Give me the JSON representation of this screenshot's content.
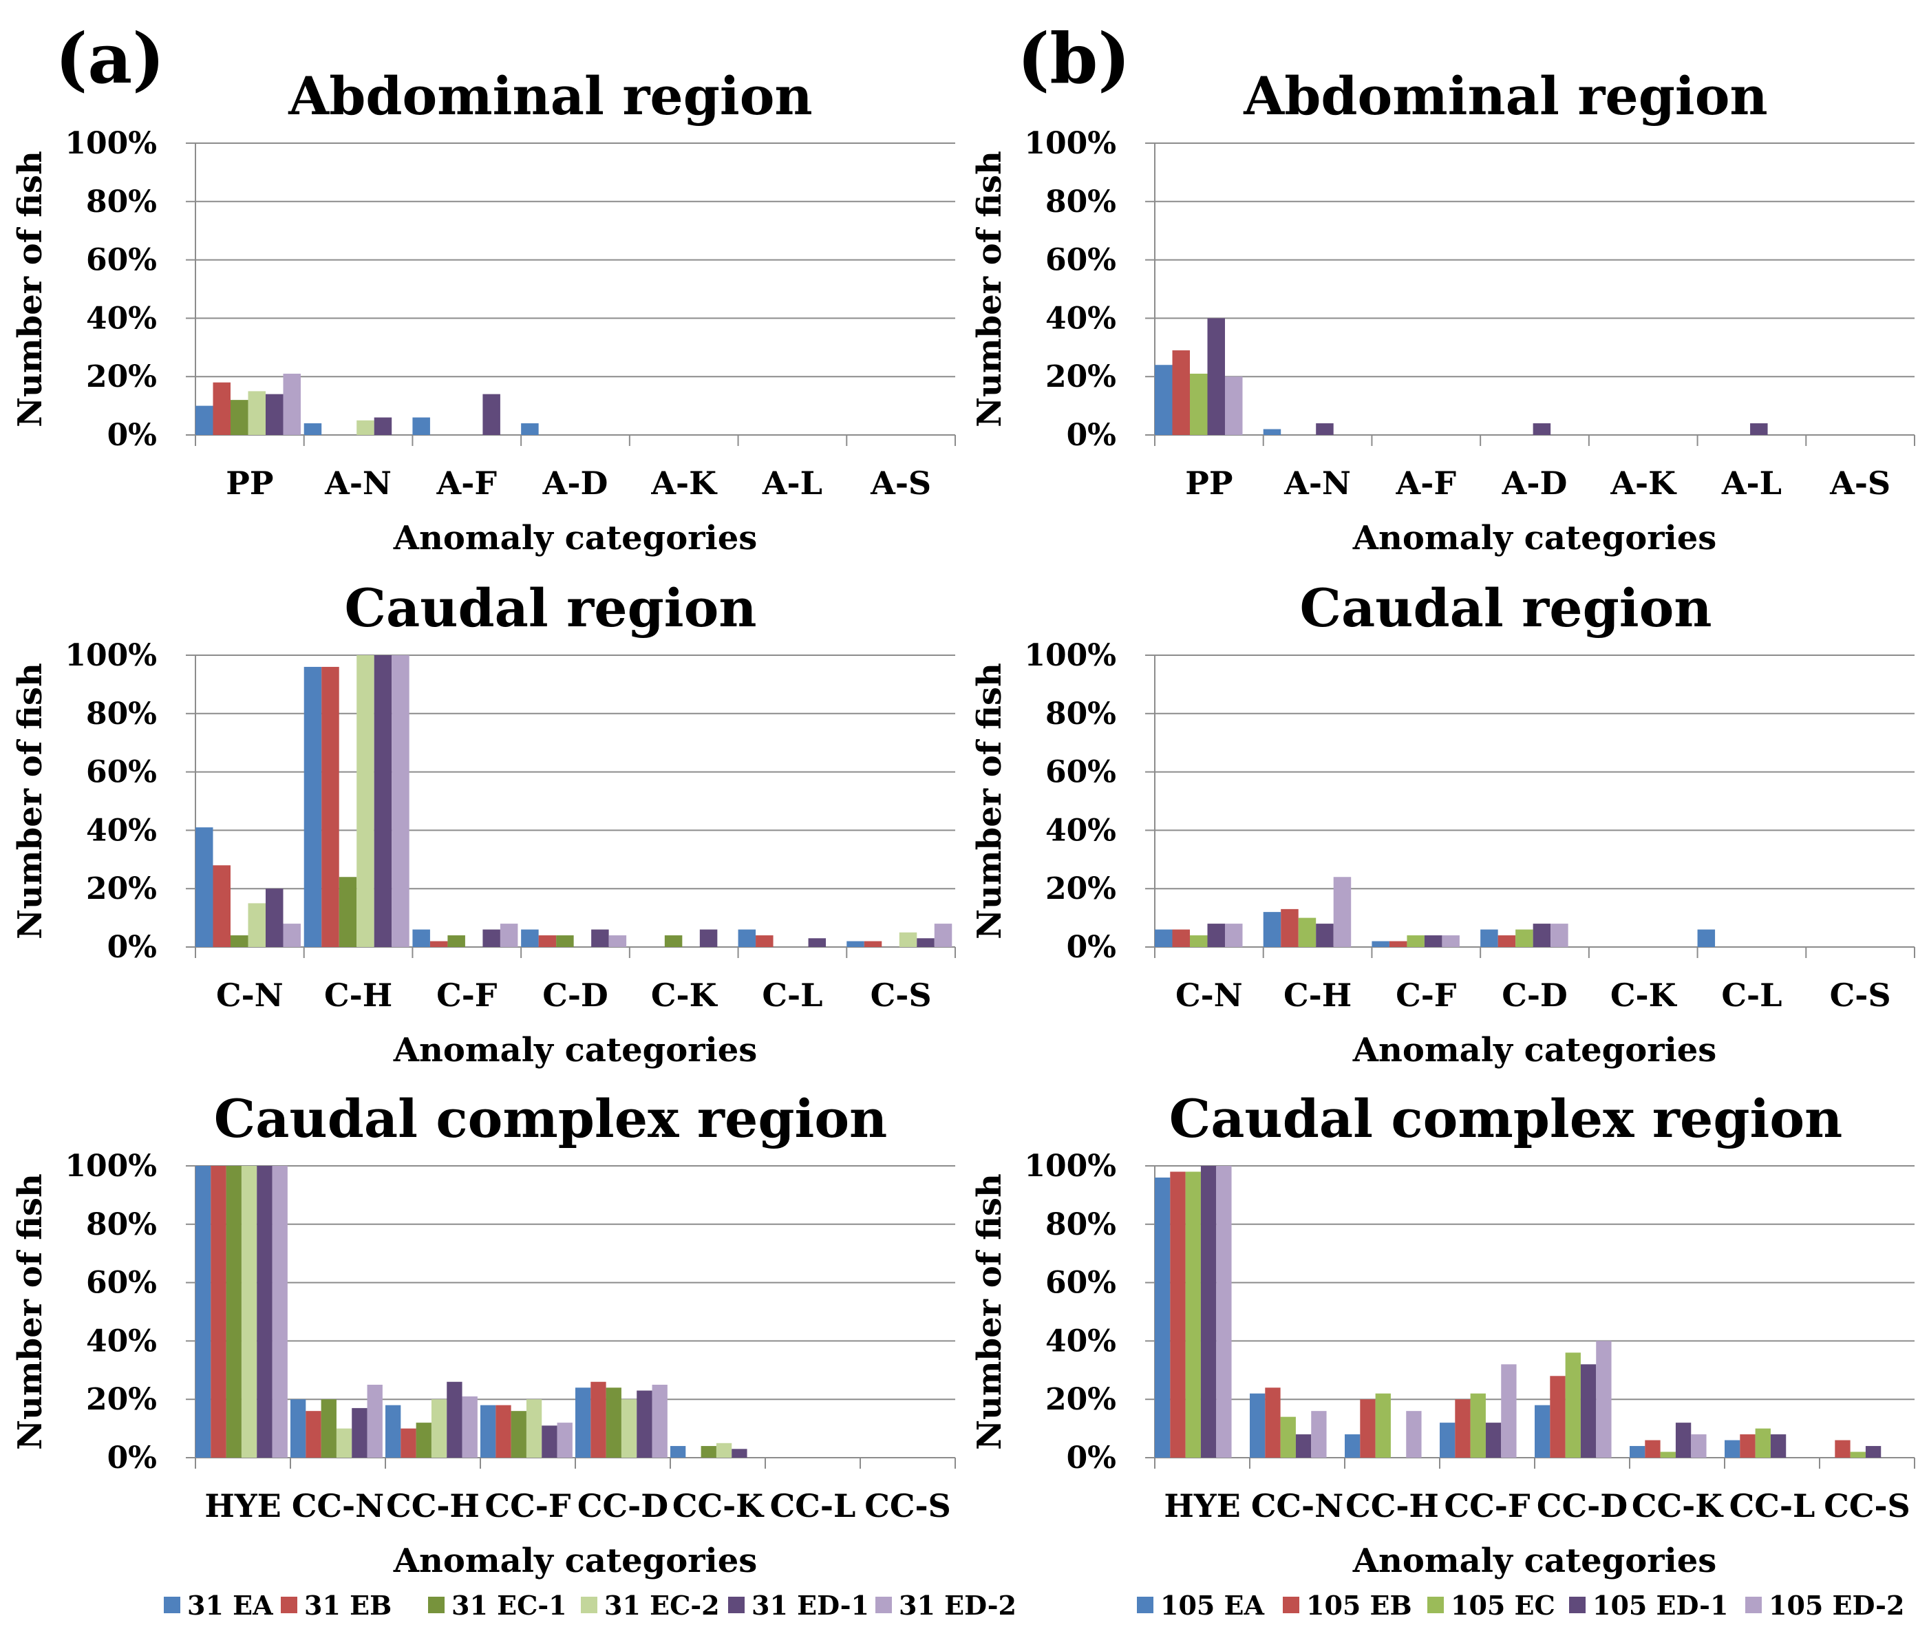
{
  "panels": [
    {
      "label": "(a)"
    },
    {
      "label": "(b)"
    }
  ],
  "legend_a": [
    {
      "name": "31 EA",
      "color": "#4F81BD"
    },
    {
      "name": "31 EB",
      "color": "#C0504D"
    },
    {
      "name": "31 EC-1",
      "color": "#77933C"
    },
    {
      "name": "31 EC-2",
      "color": "#C3D69B"
    },
    {
      "name": "31 ED-1",
      "color": "#604A7B"
    },
    {
      "name": "31 ED-2",
      "color": "#B3A2C7"
    }
  ],
  "legend_b": [
    {
      "name": "105 EA",
      "color": "#4F81BD"
    },
    {
      "name": "105 EB",
      "color": "#C0504D"
    },
    {
      "name": "105 EC",
      "color": "#9BBB59"
    },
    {
      "name": "105 ED-1",
      "color": "#604A7B"
    },
    {
      "name": "105 ED-2",
      "color": "#B3A2C7"
    }
  ],
  "chart_data": [
    {
      "type": "bar",
      "title": "Abdominal region",
      "xlabel": "Anomaly categories",
      "ylabel": "Number of fish",
      "ylim": [
        0,
        100
      ],
      "yticks": [
        "0%",
        "20%",
        "40%",
        "60%",
        "80%",
        "100%"
      ],
      "grid": true,
      "legend": "bottom",
      "categories": [
        "PP",
        "A-N",
        "A-F",
        "A-D",
        "A-K",
        "A-L",
        "A-S"
      ],
      "series": [
        {
          "name": "31 EA",
          "values": [
            10,
            4,
            6,
            4,
            0,
            0,
            0
          ]
        },
        {
          "name": "31 EB",
          "values": [
            18,
            0,
            0,
            0,
            0,
            0,
            0
          ]
        },
        {
          "name": "31 EC-1",
          "values": [
            12,
            0,
            0,
            0,
            0,
            0,
            0
          ]
        },
        {
          "name": "31 EC-2",
          "values": [
            15,
            5,
            0,
            0,
            0,
            0,
            0
          ]
        },
        {
          "name": "31 ED-1",
          "values": [
            14,
            6,
            14,
            0,
            0,
            0,
            0
          ]
        },
        {
          "name": "31 ED-2",
          "values": [
            21,
            0,
            0,
            0,
            0,
            0,
            0
          ]
        }
      ]
    },
    {
      "type": "bar",
      "title": "Caudal region",
      "xlabel": "Anomaly categories",
      "ylabel": "Number of fish",
      "ylim": [
        0,
        100
      ],
      "yticks": [
        "0%",
        "20%",
        "40%",
        "60%",
        "80%",
        "100%"
      ],
      "grid": true,
      "legend": "bottom",
      "categories": [
        "C-N",
        "C-H",
        "C-F",
        "C-D",
        "C-K",
        "C-L",
        "C-S"
      ],
      "series": [
        {
          "name": "31 EA",
          "values": [
            41,
            96,
            6,
            6,
            0,
            6,
            2
          ]
        },
        {
          "name": "31 EB",
          "values": [
            28,
            96,
            2,
            4,
            0,
            4,
            2
          ]
        },
        {
          "name": "31 EC-1",
          "values": [
            4,
            24,
            4,
            4,
            4,
            0,
            0
          ]
        },
        {
          "name": "31 EC-2",
          "values": [
            15,
            100,
            0,
            0,
            0,
            0,
            5
          ]
        },
        {
          "name": "31 ED-1",
          "values": [
            20,
            100,
            6,
            6,
            6,
            3,
            3
          ]
        },
        {
          "name": "31 ED-2",
          "values": [
            8,
            100,
            8,
            4,
            0,
            0,
            8
          ]
        }
      ]
    },
    {
      "type": "bar",
      "title": "Caudal complex region",
      "xlabel": "Anomaly categories",
      "ylabel": "Number of fish",
      "ylim": [
        0,
        100
      ],
      "yticks": [
        "0%",
        "20%",
        "40%",
        "60%",
        "80%",
        "100%"
      ],
      "grid": true,
      "legend": "bottom",
      "categories": [
        "HYE",
        "CC-N",
        "CC-H",
        "CC-F",
        "CC-D",
        "CC-K",
        "CC-L",
        "CC-S"
      ],
      "series": [
        {
          "name": "31 EA",
          "values": [
            100,
            20,
            18,
            18,
            24,
            4,
            0,
            0
          ]
        },
        {
          "name": "31 EB",
          "values": [
            100,
            16,
            10,
            18,
            26,
            0,
            0,
            0
          ]
        },
        {
          "name": "31 EC-1",
          "values": [
            100,
            20,
            12,
            16,
            24,
            4,
            0,
            0
          ]
        },
        {
          "name": "31 EC-2",
          "values": [
            100,
            10,
            20,
            20,
            20,
            5,
            0,
            0
          ]
        },
        {
          "name": "31 ED-1",
          "values": [
            100,
            17,
            26,
            11,
            23,
            3,
            0,
            0
          ]
        },
        {
          "name": "31 ED-2",
          "values": [
            100,
            25,
            21,
            12,
            25,
            0,
            0,
            0
          ]
        }
      ]
    },
    {
      "type": "bar",
      "title": "Abdominal region",
      "xlabel": "Anomaly categories",
      "ylabel": "Number of fish",
      "ylim": [
        0,
        100
      ],
      "yticks": [
        "0%",
        "20%",
        "40%",
        "60%",
        "80%",
        "100%"
      ],
      "grid": true,
      "legend": "bottom",
      "categories": [
        "PP",
        "A-N",
        "A-F",
        "A-D",
        "A-K",
        "A-L",
        "A-S"
      ],
      "series": [
        {
          "name": "105 EA",
          "values": [
            24,
            2,
            0,
            0,
            0,
            0,
            0
          ]
        },
        {
          "name": "105 EB",
          "values": [
            29,
            0,
            0,
            0,
            0,
            0,
            0
          ]
        },
        {
          "name": "105 EC",
          "values": [
            21,
            0,
            0,
            0,
            0,
            0,
            0
          ]
        },
        {
          "name": "105 ED-1",
          "values": [
            40,
            4,
            0,
            4,
            0,
            4,
            0
          ]
        },
        {
          "name": "105 ED-2",
          "values": [
            20,
            0,
            0,
            0,
            0,
            0,
            0
          ]
        }
      ]
    },
    {
      "type": "bar",
      "title": "Caudal region",
      "xlabel": "Anomaly categories",
      "ylabel": "Number of fish",
      "ylim": [
        0,
        100
      ],
      "yticks": [
        "0%",
        "20%",
        "40%",
        "60%",
        "80%",
        "100%"
      ],
      "grid": true,
      "legend": "bottom",
      "categories": [
        "C-N",
        "C-H",
        "C-F",
        "C-D",
        "C-K",
        "C-L",
        "C-S"
      ],
      "series": [
        {
          "name": "105 EA",
          "values": [
            6,
            12,
            2,
            6,
            0,
            6,
            0
          ]
        },
        {
          "name": "105 EB",
          "values": [
            6,
            13,
            2,
            4,
            0,
            0,
            0
          ]
        },
        {
          "name": "105 EC",
          "values": [
            4,
            10,
            4,
            6,
            0,
            0,
            0
          ]
        },
        {
          "name": "105 ED-1",
          "values": [
            8,
            8,
            4,
            8,
            0,
            0,
            0
          ]
        },
        {
          "name": "105 ED-2",
          "values": [
            8,
            24,
            4,
            8,
            0,
            0,
            0
          ]
        }
      ]
    },
    {
      "type": "bar",
      "title": "Caudal complex region",
      "xlabel": "Anomaly categories",
      "ylabel": "Number of fish",
      "ylim": [
        0,
        100
      ],
      "yticks": [
        "0%",
        "20%",
        "40%",
        "60%",
        "80%",
        "100%"
      ],
      "grid": true,
      "legend": "bottom",
      "categories": [
        "HYE",
        "CC-N",
        "CC-H",
        "CC-F",
        "CC-D",
        "CC-K",
        "CC-L",
        "CC-S"
      ],
      "series": [
        {
          "name": "105 EA",
          "values": [
            96,
            22,
            8,
            12,
            18,
            4,
            6,
            0
          ]
        },
        {
          "name": "105 EB",
          "values": [
            98,
            24,
            20,
            20,
            28,
            6,
            8,
            6
          ]
        },
        {
          "name": "105 EC",
          "values": [
            98,
            14,
            22,
            22,
            36,
            2,
            10,
            2
          ]
        },
        {
          "name": "105 ED-1",
          "values": [
            100,
            8,
            0,
            12,
            32,
            12,
            8,
            4
          ]
        },
        {
          "name": "105 ED-2",
          "values": [
            100,
            16,
            16,
            32,
            40,
            8,
            0,
            0
          ]
        }
      ]
    }
  ]
}
